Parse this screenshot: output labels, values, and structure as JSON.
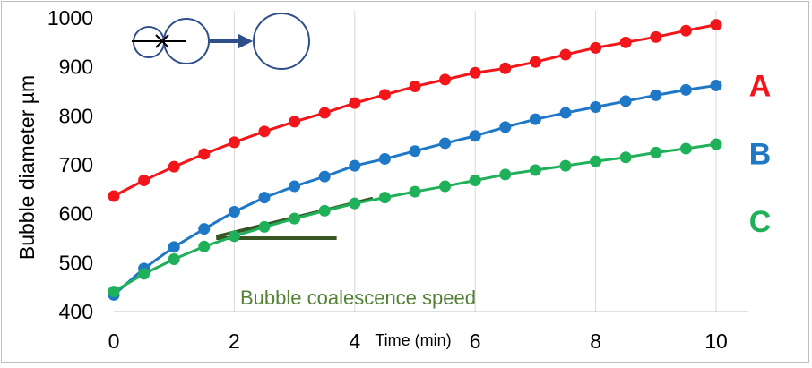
{
  "chart_data": {
    "type": "line",
    "xlabel": "Time (min)",
    "ylabel": "Bubble diameter µm",
    "xlim": [
      0,
      10
    ],
    "ylim": [
      400,
      1000
    ],
    "x_ticks": [
      "0",
      "2",
      "4",
      "6",
      "8",
      "10"
    ],
    "y_ticks": [
      "400",
      "500",
      "600",
      "700",
      "800",
      "900",
      "1000"
    ],
    "grid": "vertical",
    "annotation": "Bubble coalescence speed",
    "x": [
      0,
      0.5,
      1,
      1.5,
      2,
      2.5,
      3,
      3.5,
      4,
      4.5,
      5,
      5.5,
      6,
      6.5,
      7,
      7.5,
      8,
      8.5,
      9,
      9.5,
      10
    ],
    "series": [
      {
        "name": "A",
        "color": "#f2161b",
        "values": [
          636,
          668,
          696,
          722,
          746,
          768,
          788,
          806,
          826,
          843,
          860,
          874,
          888,
          897,
          910,
          925,
          939,
          950,
          961,
          974,
          986
        ]
      },
      {
        "name": "B",
        "color": "#1f78c6",
        "values": [
          434,
          488,
          532,
          569,
          604,
          633,
          656,
          676,
          698,
          712,
          728,
          744,
          759,
          777,
          793,
          806,
          818,
          830,
          842,
          853,
          862
        ]
      },
      {
        "name": "C",
        "color": "#1fb05a",
        "values": [
          441,
          477,
          507,
          533,
          554,
          573,
          590,
          606,
          621,
          633,
          645,
          656,
          668,
          680,
          689,
          698,
          707,
          715,
          725,
          733,
          742
        ]
      }
    ],
    "tangent_color": "#375623",
    "tangent_lines": [
      {
        "x1": 1.7,
        "y1": 553,
        "x2": 4.3,
        "y2": 631
      },
      {
        "x1": 1.7,
        "y1": 550,
        "x2": 3.7,
        "y2": 550
      }
    ],
    "annotation_color": "#548235",
    "icon_color": "#2e4f8a"
  }
}
